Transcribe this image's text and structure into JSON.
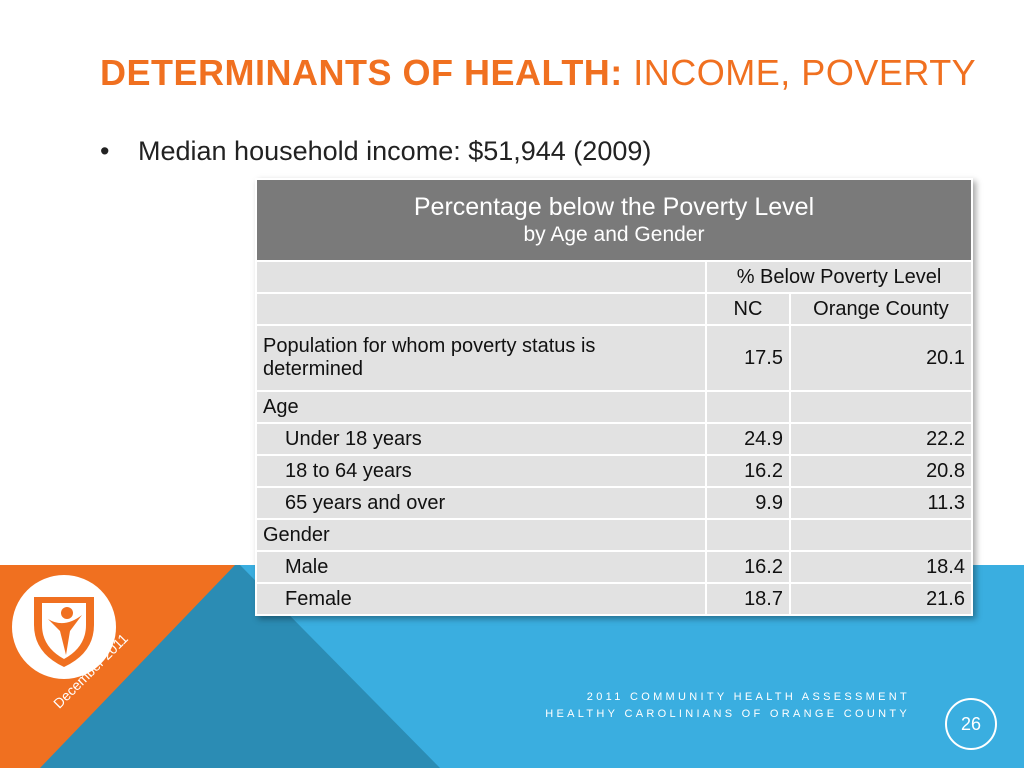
{
  "title": {
    "bold": "DETERMINANTS OF HEALTH:",
    "rest": " INCOME, POVERTY"
  },
  "bullet": {
    "symbol": "•",
    "text": "Median household income: $51,944 (2009)"
  },
  "table": {
    "title_line1": "Percentage below the Poverty Level",
    "title_line2": "by Age and Gender",
    "group_header": "% Below Poverty Level",
    "col_nc": "NC",
    "col_county": "Orange County",
    "rows": [
      {
        "label": "Population for whom poverty status is determined",
        "nc": "17.5",
        "county": "20.1"
      },
      {
        "label": "Age",
        "nc": "",
        "county": ""
      },
      {
        "label": "Under 18 years",
        "nc": "24.9",
        "county": "22.2"
      },
      {
        "label": "18 to 64 years",
        "nc": "16.2",
        "county": "20.8"
      },
      {
        "label": "65 years and over",
        "nc": "9.9",
        "county": "11.3"
      },
      {
        "label": "Gender",
        "nc": "",
        "county": ""
      },
      {
        "label": "Male",
        "nc": "16.2",
        "county": "18.4"
      },
      {
        "label": "Female",
        "nc": "18.7",
        "county": "21.6"
      }
    ]
  },
  "footer": {
    "line1": "2011 COMMUNITY HEALTH ASSESSMENT",
    "line2": "HEALTHY CAROLINIANS OF ORANGE COUNTY",
    "page": "26",
    "date": "December 2011"
  },
  "colors": {
    "accent": "#f07020",
    "blue": "#3aaee0",
    "teal": "#2b8cb4",
    "table_header": "#7a7a7a",
    "table_cell": "#e2e2e2"
  }
}
